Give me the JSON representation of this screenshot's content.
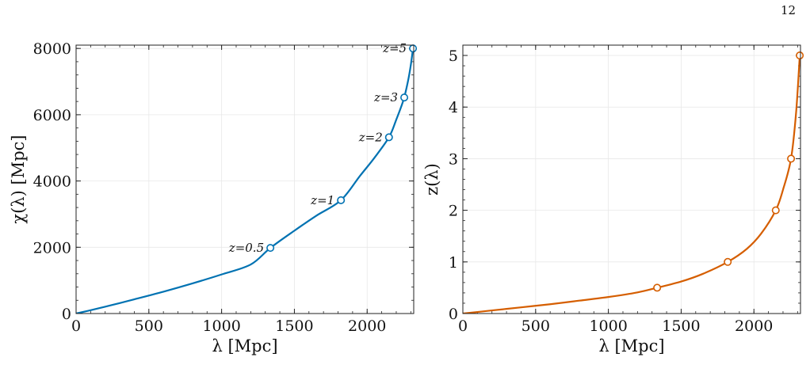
{
  "page_number": "12",
  "chart_data": [
    {
      "type": "line",
      "xlabel": "λ [Mpc]",
      "ylabel": "χ(λ) [Mpc]",
      "xlim": [
        0,
        2320
      ],
      "ylim": [
        0,
        8100
      ],
      "xticks": [
        0,
        500,
        1000,
        1500,
        2000
      ],
      "xtick_labels": [
        "0",
        "500",
        "1000",
        "1500",
        "2000"
      ],
      "yticks": [
        0,
        2000,
        4000,
        6000,
        8000
      ],
      "ytick_labels": [
        "0",
        "2000",
        "4000",
        "6000",
        "8000"
      ],
      "grid": true,
      "color": "#0072b2",
      "series": [
        {
          "x": [
            0,
            100,
            250,
            400,
            600,
            800,
            1000,
            1200,
            1335,
            1500,
            1650,
            1820,
            1950,
            2050,
            2150,
            2200,
            2250,
            2280,
            2300,
            2315
          ],
          "y": [
            0,
            100,
            260,
            430,
            660,
            910,
            1180,
            1480,
            1980,
            2500,
            2950,
            3420,
            4150,
            4700,
            5320,
            5850,
            6450,
            7000,
            7500,
            8000
          ]
        }
      ],
      "markers": [
        {
          "label": "z=0.5",
          "x": 1335,
          "y": 1980
        },
        {
          "label": "z=1",
          "x": 1820,
          "y": 3420
        },
        {
          "label": "z=2",
          "x": 2150,
          "y": 5320
        },
        {
          "label": "z=3",
          "x": 2255,
          "y": 6520
        },
        {
          "label": "z=5",
          "x": 2315,
          "y": 8000
        }
      ]
    },
    {
      "type": "line",
      "xlabel": "λ [Mpc]",
      "ylabel": "z(λ)",
      "xlim": [
        0,
        2320
      ],
      "ylim": [
        0,
        5.2
      ],
      "xticks": [
        0,
        500,
        1000,
        1500,
        2000
      ],
      "xtick_labels": [
        "0",
        "500",
        "1000",
        "1500",
        "2000"
      ],
      "yticks": [
        0,
        1,
        2,
        3,
        4,
        5
      ],
      "ytick_labels": [
        "0",
        "1",
        "2",
        "3",
        "4",
        "5"
      ],
      "grid": true,
      "color": "#d55e00",
      "series": [
        {
          "x": [
            0,
            200,
            400,
            600,
            800,
            1000,
            1200,
            1335,
            1500,
            1650,
            1820,
            1950,
            2050,
            2150,
            2200,
            2255,
            2290,
            2315
          ],
          "y": [
            0,
            0.06,
            0.12,
            0.18,
            0.25,
            0.32,
            0.41,
            0.5,
            0.62,
            0.77,
            1.0,
            1.25,
            1.55,
            2.0,
            2.4,
            3.0,
            3.9,
            5.0
          ]
        }
      ],
      "markers": [
        {
          "x": 1335,
          "y": 0.5
        },
        {
          "x": 1820,
          "y": 1.0
        },
        {
          "x": 2150,
          "y": 2.0
        },
        {
          "x": 2255,
          "y": 3.0
        },
        {
          "x": 2315,
          "y": 5.0
        }
      ]
    }
  ]
}
